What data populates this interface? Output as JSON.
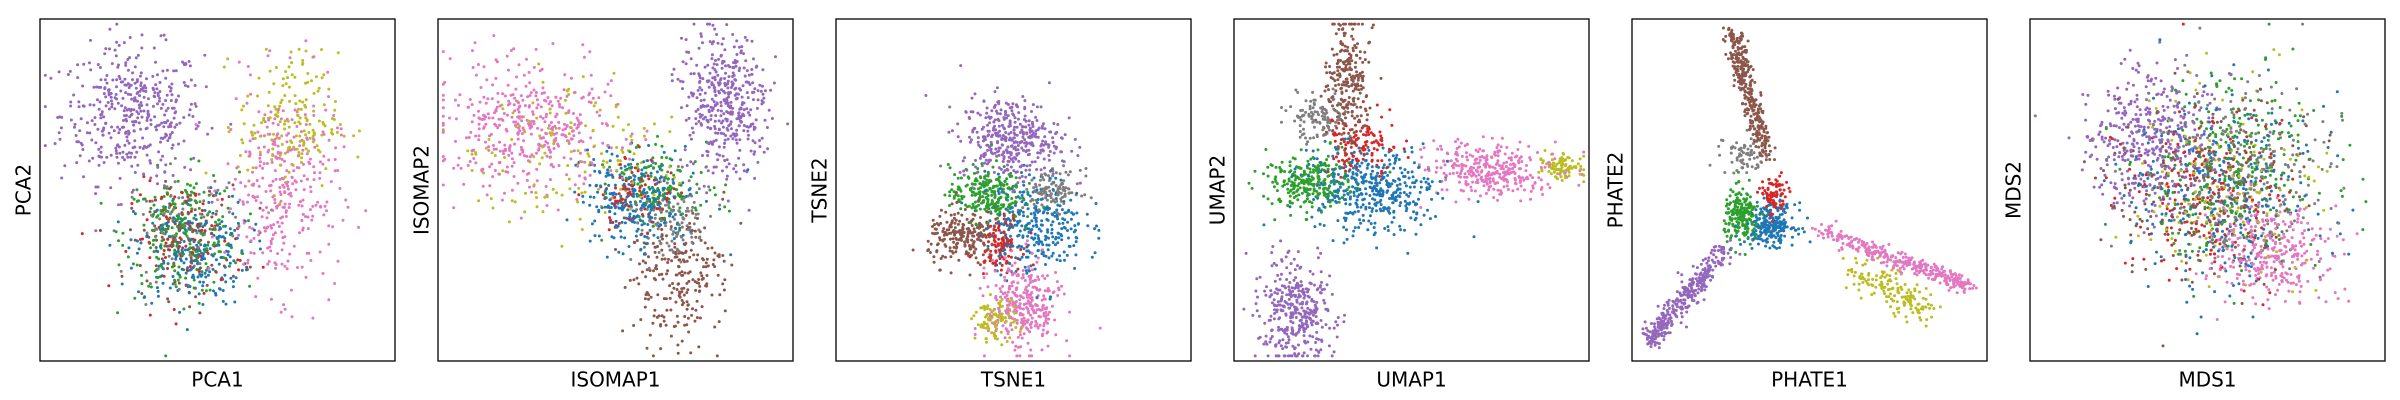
{
  "chart_data": [
    {
      "type": "scatter",
      "xlabel": "PCA1",
      "ylabel": "PCA2",
      "xticks": [],
      "yticks": [],
      "grid": false,
      "legend": "none",
      "clusters": [
        {
          "color": "#9467bd",
          "cx": 0.26,
          "cy": 0.72,
          "sx": 0.1,
          "sy": 0.1,
          "n": 420
        },
        {
          "color": "#2ca02c",
          "cx": 0.4,
          "cy": 0.37,
          "sx": 0.08,
          "sy": 0.09,
          "n": 230
        },
        {
          "color": "#1f77b4",
          "cx": 0.43,
          "cy": 0.32,
          "sx": 0.08,
          "sy": 0.08,
          "n": 230
        },
        {
          "color": "#8c564b",
          "cx": 0.41,
          "cy": 0.35,
          "sx": 0.08,
          "sy": 0.08,
          "n": 120
        },
        {
          "color": "#d62728",
          "cx": 0.42,
          "cy": 0.36,
          "sx": 0.08,
          "sy": 0.08,
          "n": 90
        },
        {
          "color": "#7f7f7f",
          "cx": 0.4,
          "cy": 0.4,
          "sx": 0.08,
          "sy": 0.08,
          "n": 80
        },
        {
          "color": "#e377c2",
          "cx": 0.68,
          "cy": 0.5,
          "sx": 0.08,
          "sy": 0.15,
          "n": 330
        },
        {
          "color": "#bcbd22",
          "cx": 0.7,
          "cy": 0.7,
          "sx": 0.07,
          "sy": 0.1,
          "n": 180
        }
      ]
    },
    {
      "type": "scatter",
      "xlabel": "ISOMAP1",
      "ylabel": "ISOMAP2",
      "xticks": [],
      "yticks": [],
      "grid": false,
      "legend": "none",
      "clusters": [
        {
          "color": "#9467bd",
          "cx": 0.81,
          "cy": 0.75,
          "sx": 0.06,
          "sy": 0.1,
          "n": 420
        },
        {
          "color": "#1f77b4",
          "cx": 0.57,
          "cy": 0.47,
          "sx": 0.08,
          "sy": 0.07,
          "n": 280
        },
        {
          "color": "#2ca02c",
          "cx": 0.62,
          "cy": 0.52,
          "sx": 0.07,
          "sy": 0.06,
          "n": 130
        },
        {
          "color": "#e377c2",
          "cx": 0.25,
          "cy": 0.68,
          "sx": 0.12,
          "sy": 0.09,
          "n": 420
        },
        {
          "color": "#8c564b",
          "cx": 0.67,
          "cy": 0.25,
          "sx": 0.07,
          "sy": 0.1,
          "n": 230
        },
        {
          "color": "#7f7f7f",
          "cx": 0.66,
          "cy": 0.42,
          "sx": 0.05,
          "sy": 0.06,
          "n": 120
        },
        {
          "color": "#d62728",
          "cx": 0.55,
          "cy": 0.48,
          "sx": 0.06,
          "sy": 0.05,
          "n": 90
        },
        {
          "color": "#bcbd22",
          "cx": 0.38,
          "cy": 0.6,
          "sx": 0.15,
          "sy": 0.1,
          "n": 150
        }
      ]
    },
    {
      "type": "scatter",
      "xlabel": "TSNE1",
      "ylabel": "TSNE2",
      "xticks": [],
      "yticks": [],
      "grid": false,
      "legend": "none",
      "clusters": [
        {
          "color": "#9467bd",
          "cx": 0.49,
          "cy": 0.65,
          "sx": 0.07,
          "sy": 0.06,
          "n": 380
        },
        {
          "color": "#2ca02c",
          "cx": 0.42,
          "cy": 0.49,
          "sx": 0.05,
          "sy": 0.04,
          "n": 240
        },
        {
          "color": "#1f77b4",
          "cx": 0.56,
          "cy": 0.4,
          "sx": 0.07,
          "sy": 0.07,
          "n": 320
        },
        {
          "color": "#8c564b",
          "cx": 0.36,
          "cy": 0.36,
          "sx": 0.05,
          "sy": 0.04,
          "n": 220
        },
        {
          "color": "#d62728",
          "cx": 0.46,
          "cy": 0.35,
          "sx": 0.03,
          "sy": 0.04,
          "n": 110
        },
        {
          "color": "#7f7f7f",
          "cx": 0.61,
          "cy": 0.5,
          "sx": 0.04,
          "sy": 0.03,
          "n": 120
        },
        {
          "color": "#e377c2",
          "cx": 0.53,
          "cy": 0.16,
          "sx": 0.05,
          "sy": 0.07,
          "n": 300
        },
        {
          "color": "#bcbd22",
          "cx": 0.45,
          "cy": 0.12,
          "sx": 0.03,
          "sy": 0.03,
          "n": 100
        }
      ]
    },
    {
      "type": "scatter",
      "xlabel": "UMAP1",
      "ylabel": "UMAP2",
      "xticks": [],
      "yticks": [],
      "grid": false,
      "legend": "none",
      "clusters": [
        {
          "color": "#8c564b",
          "cx": 0.32,
          "cy": 0.82,
          "sx": 0.03,
          "sy": 0.1,
          "n": 250
        },
        {
          "color": "#7f7f7f",
          "cx": 0.24,
          "cy": 0.71,
          "sx": 0.04,
          "sy": 0.03,
          "n": 110
        },
        {
          "color": "#d62728",
          "cx": 0.36,
          "cy": 0.63,
          "sx": 0.05,
          "sy": 0.05,
          "n": 120
        },
        {
          "color": "#2ca02c",
          "cx": 0.21,
          "cy": 0.52,
          "sx": 0.06,
          "sy": 0.04,
          "n": 260
        },
        {
          "color": "#1f77b4",
          "cx": 0.39,
          "cy": 0.5,
          "sx": 0.09,
          "sy": 0.06,
          "n": 420
        },
        {
          "color": "#e377c2",
          "cx": 0.73,
          "cy": 0.56,
          "sx": 0.09,
          "sy": 0.04,
          "n": 320
        },
        {
          "color": "#bcbd22",
          "cx": 0.93,
          "cy": 0.57,
          "sx": 0.03,
          "sy": 0.02,
          "n": 90
        },
        {
          "color": "#9467bd",
          "cx": 0.17,
          "cy": 0.14,
          "sx": 0.05,
          "sy": 0.07,
          "n": 360
        }
      ]
    },
    {
      "type": "scatter",
      "xlabel": "PHATE1",
      "ylabel": "PHATE2",
      "xticks": [],
      "yticks": [],
      "grid": false,
      "legend": "none",
      "arms": [
        {
          "color": "#8c564b",
          "from": [
            0.38,
            0.59
          ],
          "to": [
            0.28,
            0.96
          ],
          "width": 0.014,
          "n": 330
        },
        {
          "color": "#7f7f7f",
          "from": [
            0.34,
            0.58
          ],
          "to": [
            0.29,
            0.62
          ],
          "width": 0.025,
          "n": 70
        },
        {
          "color": "#9467bd",
          "from": [
            0.27,
            0.34
          ],
          "to": [
            0.05,
            0.06
          ],
          "width": 0.016,
          "n": 340
        },
        {
          "color": "#e377c2",
          "from": [
            0.53,
            0.38
          ],
          "to": [
            0.95,
            0.22
          ],
          "width": 0.012,
          "n": 330
        },
        {
          "color": "#bcbd22",
          "from": [
            0.61,
            0.27
          ],
          "to": [
            0.84,
            0.15
          ],
          "width": 0.025,
          "n": 160
        }
      ],
      "clusters": [
        {
          "color": "#2ca02c",
          "cx": 0.31,
          "cy": 0.42,
          "sx": 0.025,
          "sy": 0.04,
          "n": 200
        },
        {
          "color": "#1f77b4",
          "cx": 0.39,
          "cy": 0.4,
          "sx": 0.035,
          "sy": 0.03,
          "n": 240
        },
        {
          "color": "#d62728",
          "cx": 0.4,
          "cy": 0.48,
          "sx": 0.02,
          "sy": 0.03,
          "n": 90
        }
      ]
    },
    {
      "type": "scatter",
      "xlabel": "MDS1",
      "ylabel": "MDS2",
      "xticks": [],
      "yticks": [],
      "grid": false,
      "legend": "none",
      "clusters": [
        {
          "color": "#9467bd",
          "cx": 0.34,
          "cy": 0.64,
          "sx": 0.09,
          "sy": 0.1,
          "n": 420
        },
        {
          "color": "#1f77b4",
          "cx": 0.54,
          "cy": 0.5,
          "sx": 0.13,
          "sy": 0.14,
          "n": 330
        },
        {
          "color": "#2ca02c",
          "cx": 0.56,
          "cy": 0.56,
          "sx": 0.13,
          "sy": 0.14,
          "n": 280
        },
        {
          "color": "#8c564b",
          "cx": 0.52,
          "cy": 0.52,
          "sx": 0.13,
          "sy": 0.14,
          "n": 230
        },
        {
          "color": "#7f7f7f",
          "cx": 0.6,
          "cy": 0.56,
          "sx": 0.12,
          "sy": 0.13,
          "n": 200
        },
        {
          "color": "#d62728",
          "cx": 0.5,
          "cy": 0.5,
          "sx": 0.12,
          "sy": 0.13,
          "n": 180
        },
        {
          "color": "#bcbd22",
          "cx": 0.54,
          "cy": 0.52,
          "sx": 0.13,
          "sy": 0.14,
          "n": 170
        },
        {
          "color": "#e377c2",
          "cx": 0.68,
          "cy": 0.32,
          "sx": 0.08,
          "sy": 0.07,
          "n": 320
        }
      ]
    }
  ]
}
